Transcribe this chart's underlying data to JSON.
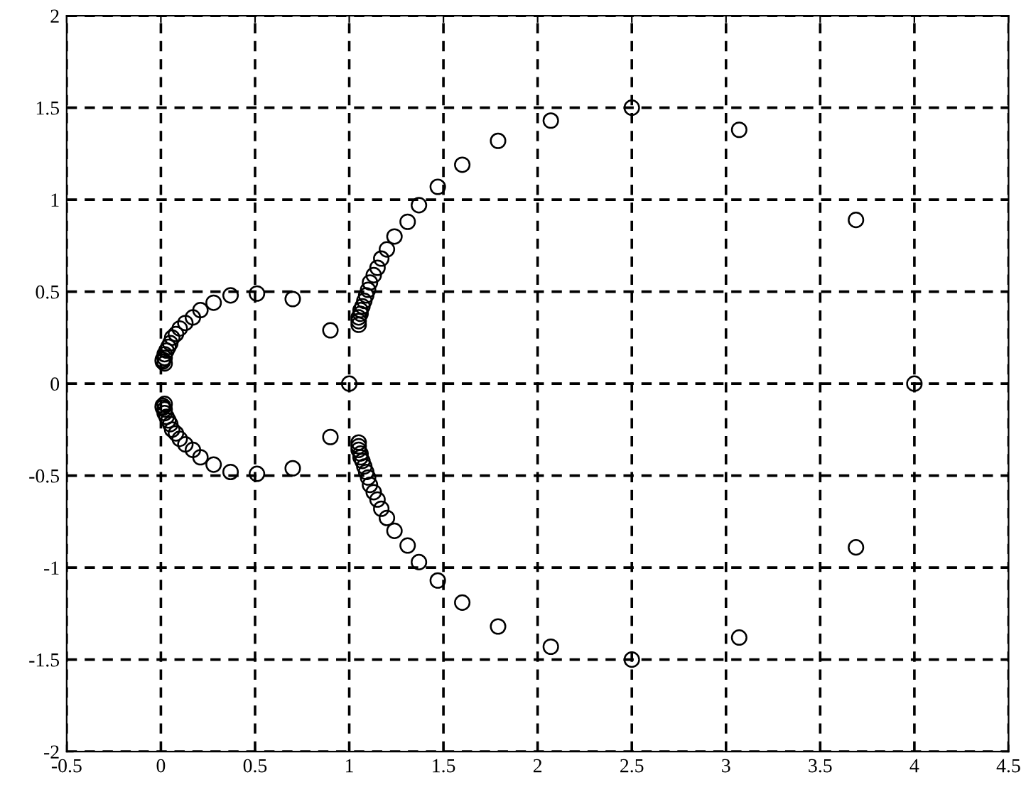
{
  "chart_data": {
    "type": "scatter",
    "xlim": [
      -0.5,
      4.5
    ],
    "ylim": [
      -2,
      2
    ],
    "xticks": [
      -0.5,
      0,
      0.5,
      1,
      1.5,
      2,
      2.5,
      3,
      3.5,
      4,
      4.5
    ],
    "yticks": [
      -2,
      -1.5,
      -1,
      -0.5,
      0,
      0.5,
      1,
      1.5,
      2
    ],
    "grid": true,
    "marker": "circle",
    "series": [
      {
        "color": "#000000",
        "x": [
          4,
          3.69,
          3.07,
          2.5,
          2.07,
          1.79,
          1.6,
          1.47,
          1.37,
          1.31,
          1.24,
          1.2,
          1.17,
          1.15,
          1.13,
          1.11,
          1.1,
          1.09,
          1.08,
          1.07,
          1.06,
          1.06,
          1.05,
          1.05,
          1.05,
          1,
          0.9,
          0.7,
          0.51,
          0.37,
          0.28,
          0.21,
          0.17,
          0.13,
          0.1,
          0.08,
          0.06,
          0.05,
          0.04,
          0.03,
          0.02,
          0.02,
          0.01,
          0.01,
          0.02,
          3.69,
          3.07,
          2.5,
          2.07,
          1.79,
          1.6,
          1.47,
          1.37,
          1.31,
          1.24,
          1.2,
          1.17,
          1.15,
          1.13,
          1.11,
          1.1,
          1.09,
          1.08,
          1.07,
          1.06,
          1.06,
          1.05,
          1.05,
          1.05,
          0.9,
          0.7,
          0.51,
          0.37,
          0.28,
          0.21,
          0.17,
          0.13,
          0.1,
          0.08,
          0.06,
          0.05,
          0.04,
          0.03,
          0.02,
          0.02,
          0.01,
          0.01,
          0.02
        ],
        "values": [
          0,
          0.89,
          1.38,
          1.5,
          1.43,
          1.32,
          1.19,
          1.07,
          0.97,
          0.88,
          0.8,
          0.73,
          0.68,
          0.63,
          0.59,
          0.55,
          0.51,
          0.48,
          0.45,
          0.42,
          0.4,
          0.38,
          0.36,
          0.34,
          0.32,
          0,
          0.29,
          0.46,
          0.49,
          0.48,
          0.44,
          0.4,
          0.36,
          0.33,
          0.3,
          0.27,
          0.25,
          0.22,
          0.2,
          0.18,
          0.16,
          0.14,
          0.13,
          0.12,
          0.11,
          -0.89,
          -1.38,
          -1.5,
          -1.43,
          -1.32,
          -1.19,
          -1.07,
          -0.97,
          -0.88,
          -0.8,
          -0.73,
          -0.68,
          -0.63,
          -0.59,
          -0.55,
          -0.51,
          -0.48,
          -0.45,
          -0.42,
          -0.4,
          -0.38,
          -0.36,
          -0.34,
          -0.32,
          -0.29,
          -0.46,
          -0.49,
          -0.48,
          -0.44,
          -0.4,
          -0.36,
          -0.33,
          -0.3,
          -0.27,
          -0.25,
          -0.22,
          -0.2,
          -0.18,
          -0.16,
          -0.14,
          -0.13,
          -0.12,
          -0.11
        ]
      }
    ]
  }
}
